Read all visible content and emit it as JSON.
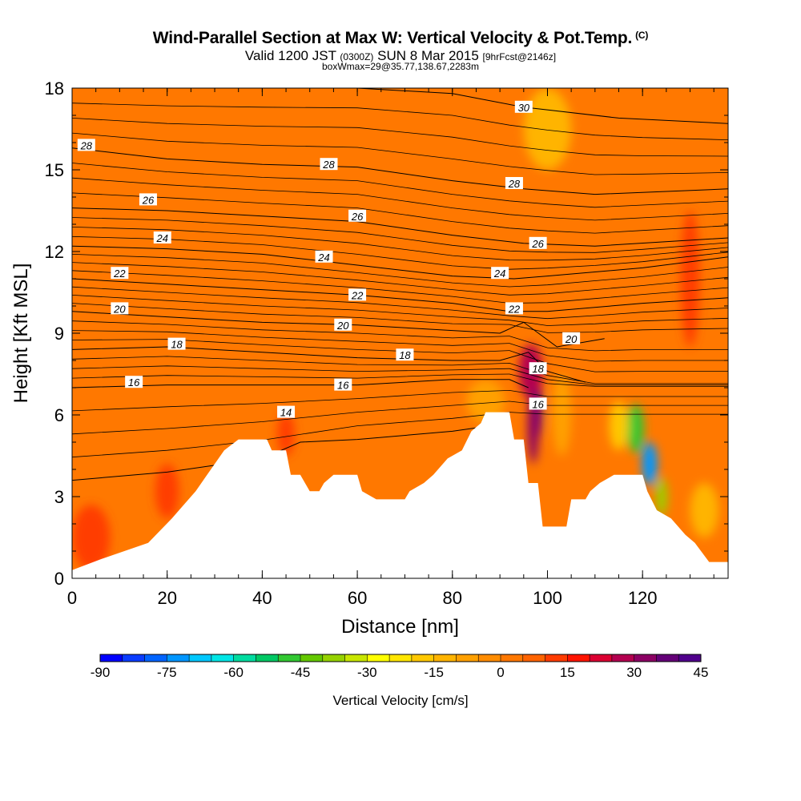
{
  "title": {
    "main": "Wind-Parallel Section at Max W: Vertical Velocity & Pot.Temp.",
    "main_tag": "(C)",
    "sub_a": "Valid 1200 JST",
    "sub_b": "(0300Z)",
    "sub_c": "SUN 8 Mar 2015",
    "sub_d": "[9hrFcst@2146z]",
    "sub2": "boxWmax=29@35.77,138.67,2283m"
  },
  "chart_data": {
    "type": "contour",
    "xlabel": "Distance [nm]",
    "ylabel": "Height [Kft MSL]",
    "xlim": [
      0,
      138
    ],
    "ylim": [
      0,
      18
    ],
    "x_ticks": [
      "0",
      "20",
      "40",
      "60",
      "80",
      "100",
      "120"
    ],
    "y_ticks": [
      "0",
      "3",
      "6",
      "9",
      "12",
      "15",
      "18"
    ],
    "colorbar": {
      "title": "Vertical Velocity [cm/s]",
      "range": [
        -90,
        45
      ],
      "step": 5,
      "tick_labels": [
        "-90",
        "-75",
        "-60",
        "-45",
        "-30",
        "-15",
        "0",
        "15",
        "30",
        "45"
      ],
      "colors": [
        "#0000ff",
        "#0a3cff",
        "#0064ff",
        "#0096ff",
        "#00c8ff",
        "#00e6e6",
        "#00dca0",
        "#00c864",
        "#32c832",
        "#64c800",
        "#96d200",
        "#c8e600",
        "#ffff00",
        "#ffe600",
        "#ffc800",
        "#ffb400",
        "#ffa000",
        "#ff8c00",
        "#ff7800",
        "#ff6400",
        "#ff3c00",
        "#ff1400",
        "#dc0032",
        "#b40050",
        "#8c0064",
        "#640078",
        "#50008c"
      ]
    },
    "background_value": 2,
    "terrain_height_kft": [
      [
        0,
        0.3
      ],
      [
        6,
        0.7
      ],
      [
        16,
        1.3
      ],
      [
        21,
        2.2
      ],
      [
        26,
        3.2
      ],
      [
        32,
        4.7
      ],
      [
        35,
        5.1
      ],
      [
        41,
        5.1
      ],
      [
        42,
        4.7
      ],
      [
        45,
        4.7
      ],
      [
        46,
        3.8
      ],
      [
        48,
        3.8
      ],
      [
        50,
        3.2
      ],
      [
        52,
        3.2
      ],
      [
        53,
        3.5
      ],
      [
        55,
        3.8
      ],
      [
        60,
        3.8
      ],
      [
        61,
        3.2
      ],
      [
        64,
        2.9
      ],
      [
        70,
        2.9
      ],
      [
        71,
        3.2
      ],
      [
        74,
        3.5
      ],
      [
        76,
        3.8
      ],
      [
        79,
        4.4
      ],
      [
        82,
        4.7
      ],
      [
        84,
        5.4
      ],
      [
        86,
        5.7
      ],
      [
        87,
        6.1
      ],
      [
        92,
        6.1
      ],
      [
        93,
        5.1
      ],
      [
        95,
        5.1
      ],
      [
        96,
        3.5
      ],
      [
        98,
        3.5
      ],
      [
        99,
        1.9
      ],
      [
        104,
        1.9
      ],
      [
        105,
        2.9
      ],
      [
        108,
        2.9
      ],
      [
        109,
        3.2
      ],
      [
        111,
        3.5
      ],
      [
        114,
        3.8
      ],
      [
        120,
        3.8
      ],
      [
        121,
        3.2
      ],
      [
        123,
        2.5
      ],
      [
        126,
        2.2
      ],
      [
        129,
        1.6
      ],
      [
        131,
        1.3
      ],
      [
        134,
        0.6
      ],
      [
        138,
        0.6
      ]
    ],
    "series": [
      {
        "name": "14",
        "values": [
          [
            0,
            3.6
          ],
          [
            20,
            3.9
          ],
          [
            40,
            4.4
          ],
          [
            48,
            5.0
          ],
          [
            60,
            5.1
          ],
          [
            80,
            5.4
          ],
          [
            92,
            5.7
          ]
        ]
      },
      {
        "name": "16",
        "values": [
          [
            0,
            7.0
          ],
          [
            20,
            7.1
          ],
          [
            40,
            7.1
          ],
          [
            60,
            7.1
          ],
          [
            80,
            7.3
          ],
          [
            92,
            7.3
          ],
          [
            96,
            7.0
          ]
        ]
      },
      {
        "name": "18",
        "values": [
          [
            0,
            8.4
          ],
          [
            20,
            8.5
          ],
          [
            40,
            8.3
          ],
          [
            60,
            8.1
          ],
          [
            80,
            8.0
          ],
          [
            90,
            8.0
          ],
          [
            96,
            8.3
          ],
          [
            100,
            7.6
          ],
          [
            108,
            7.2
          ]
        ]
      },
      {
        "name": "20",
        "values": [
          [
            0,
            9.8
          ],
          [
            20,
            9.6
          ],
          [
            40,
            9.4
          ],
          [
            60,
            9.3
          ],
          [
            80,
            9.1
          ],
          [
            90,
            9.0
          ],
          [
            95,
            9.4
          ],
          [
            102,
            8.5
          ],
          [
            112,
            8.8
          ]
        ]
      },
      {
        "name": "22",
        "values": [
          [
            0,
            11.0
          ],
          [
            20,
            10.8
          ],
          [
            40,
            10.6
          ],
          [
            60,
            10.4
          ],
          [
            80,
            10.1
          ],
          [
            92,
            9.8
          ],
          [
            100,
            9.8
          ],
          [
            120,
            10.1
          ],
          [
            138,
            10.3
          ]
        ]
      },
      {
        "name": "24",
        "values": [
          [
            0,
            12.2
          ],
          [
            20,
            12.1
          ],
          [
            40,
            11.9
          ],
          [
            60,
            11.5
          ],
          [
            80,
            11.1
          ],
          [
            93,
            11.0
          ],
          [
            100,
            11.1
          ],
          [
            120,
            11.4
          ],
          [
            138,
            11.8
          ]
        ]
      },
      {
        "name": "26",
        "values": [
          [
            0,
            13.6
          ],
          [
            20,
            13.5
          ],
          [
            40,
            13.3
          ],
          [
            60,
            13.1
          ],
          [
            80,
            12.6
          ],
          [
            95,
            12.3
          ],
          [
            110,
            12.2
          ],
          [
            138,
            12.5
          ]
        ]
      },
      {
        "name": "28",
        "values": [
          [
            0,
            15.8
          ],
          [
            20,
            15.4
          ],
          [
            40,
            15.2
          ],
          [
            60,
            15.1
          ],
          [
            80,
            14.6
          ],
          [
            95,
            14.3
          ],
          [
            110,
            14.1
          ],
          [
            138,
            14.3
          ]
        ]
      },
      {
        "name": "30",
        "values": [
          [
            60,
            18.0
          ],
          [
            80,
            17.8
          ],
          [
            95,
            17.3
          ],
          [
            115,
            16.9
          ],
          [
            138,
            16.7
          ]
        ]
      }
    ],
    "contour_labels": [
      {
        "text": "28",
        "x": 3,
        "y": 15.9
      },
      {
        "text": "28",
        "x": 54,
        "y": 15.2
      },
      {
        "text": "28",
        "x": 93,
        "y": 14.5
      },
      {
        "text": "30",
        "x": 95,
        "y": 17.3
      },
      {
        "text": "26",
        "x": 16,
        "y": 13.9
      },
      {
        "text": "26",
        "x": 60,
        "y": 13.3
      },
      {
        "text": "26",
        "x": 98,
        "y": 12.3
      },
      {
        "text": "24",
        "x": 19,
        "y": 12.5
      },
      {
        "text": "24",
        "x": 53,
        "y": 11.8
      },
      {
        "text": "24",
        "x": 90,
        "y": 11.2
      },
      {
        "text": "22",
        "x": 10,
        "y": 11.2
      },
      {
        "text": "22",
        "x": 60,
        "y": 10.4
      },
      {
        "text": "22",
        "x": 93,
        "y": 9.9
      },
      {
        "text": "20",
        "x": 10,
        "y": 9.9
      },
      {
        "text": "20",
        "x": 57,
        "y": 9.3
      },
      {
        "text": "20",
        "x": 105,
        "y": 8.8
      },
      {
        "text": "18",
        "x": 22,
        "y": 8.6
      },
      {
        "text": "18",
        "x": 70,
        "y": 8.2
      },
      {
        "text": "18",
        "x": 98,
        "y": 7.7
      },
      {
        "text": "16",
        "x": 13,
        "y": 7.2
      },
      {
        "text": "16",
        "x": 57,
        "y": 7.1
      },
      {
        "text": "16",
        "x": 98,
        "y": 6.4
      },
      {
        "text": "14",
        "x": 45,
        "y": 6.1
      }
    ],
    "anomalies": [
      {
        "x": 97.5,
        "y": 6.2,
        "value": 40,
        "rx": 1.4,
        "ry": 1.2
      },
      {
        "x": 96.5,
        "y": 7.6,
        "value": 25,
        "rx": 2.5,
        "ry": 1.0
      },
      {
        "x": 97.0,
        "y": 5.6,
        "value": 30,
        "rx": 1.2,
        "ry": 1.4
      },
      {
        "x": 121.5,
        "y": 4.2,
        "value": -75,
        "rx": 1.6,
        "ry": 0.8
      },
      {
        "x": 118.5,
        "y": 5.5,
        "value": -50,
        "rx": 1.8,
        "ry": 0.9
      },
      {
        "x": 124.0,
        "y": 3.0,
        "value": -40,
        "rx": 1.2,
        "ry": 0.7
      },
      {
        "x": 115.0,
        "y": 5.6,
        "value": -20,
        "rx": 2.0,
        "ry": 0.9
      },
      {
        "x": 4.0,
        "y": 1.5,
        "value": 12,
        "rx": 4.0,
        "ry": 1.2
      },
      {
        "x": 20.0,
        "y": 3.2,
        "value": 10,
        "rx": 2.5,
        "ry": 1.0
      },
      {
        "x": 45.0,
        "y": 5.3,
        "value": 12,
        "rx": 1.8,
        "ry": 0.8
      },
      {
        "x": 87.0,
        "y": 6.5,
        "value": -8,
        "rx": 4.0,
        "ry": 0.8
      },
      {
        "x": 103.0,
        "y": 6.0,
        "value": -10,
        "rx": 2.0,
        "ry": 1.5
      },
      {
        "x": 100.0,
        "y": 16.5,
        "value": -12,
        "rx": 5.0,
        "ry": 1.5
      },
      {
        "x": 130.0,
        "y": 11.0,
        "value": 10,
        "rx": 2.0,
        "ry": 2.5
      },
      {
        "x": 133.0,
        "y": 2.5,
        "value": -15,
        "rx": 3.0,
        "ry": 1.0
      }
    ]
  }
}
